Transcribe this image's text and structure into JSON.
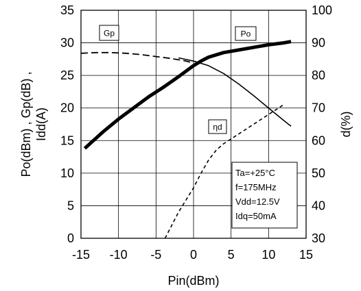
{
  "chart_data": {
    "type": "line",
    "title": "",
    "xlabel": "Pin(dBm)",
    "ylabel_left": "Po(dBm) , Gp(dB) , Idd(A)",
    "ylabel_left_lines": [
      "Po(dBm) , Gp(dB) ,",
      "Idd(A)"
    ],
    "ylabel_right": "d(%)",
    "xlim": [
      -15,
      15
    ],
    "ylim_left": [
      0,
      35
    ],
    "ylim_right": [
      30,
      100
    ],
    "x_ticks": [
      -15,
      -10,
      -5,
      0,
      5,
      10,
      15
    ],
    "x_tick_labels": [
      "-15",
      "-10",
      "-5",
      "0",
      "5",
      "10",
      "15"
    ],
    "y_left_ticks": [
      0,
      5,
      10,
      15,
      20,
      25,
      30,
      35
    ],
    "y_left_tick_labels": [
      "0",
      "5",
      "10",
      "15",
      "20",
      "25",
      "30",
      "35"
    ],
    "y_right_ticks": [
      30,
      40,
      50,
      60,
      70,
      80,
      90,
      100
    ],
    "y_right_tick_labels": [
      "30",
      "40",
      "50",
      "60",
      "70",
      "80",
      "90",
      "100"
    ],
    "grid": true,
    "series": [
      {
        "name": "Po",
        "axis": "left",
        "style": "solid-thick",
        "x": [
          -14.5,
          -12,
          -10,
          -8,
          -6,
          -4,
          -2,
          0,
          1,
          2,
          4,
          6,
          8,
          10,
          12,
          13
        ],
        "y": [
          13.8,
          16.4,
          18.3,
          20.0,
          21.7,
          23.2,
          24.8,
          26.5,
          27.2,
          27.8,
          28.5,
          28.9,
          29.3,
          29.7,
          30.0,
          30.2
        ]
      },
      {
        "name": "Gp",
        "axis": "left",
        "style": "dashed-long",
        "x": [
          -15,
          -13,
          -11,
          -9,
          -7,
          -5,
          -3,
          -1,
          0
        ],
        "y": [
          28.4,
          28.5,
          28.5,
          28.4,
          28.2,
          27.9,
          27.6,
          27.2,
          26.9
        ]
      },
      {
        "name": "Idd",
        "axis": "left",
        "style": "solid-thin",
        "x": [
          -2,
          0,
          2,
          4,
          6,
          8,
          10,
          12,
          13
        ],
        "y": [
          27.7,
          27.2,
          26.5,
          25.3,
          23.7,
          21.9,
          20.0,
          18.1,
          17.2
        ]
      },
      {
        "name": "ηd",
        "axis": "right",
        "style": "dotted",
        "x": [
          -3.8,
          -2,
          0,
          1,
          2,
          3,
          4,
          6,
          8,
          10,
          12
        ],
        "y": [
          30,
          38,
          45.5,
          50,
          54,
          57,
          59,
          62,
          65,
          68,
          71
        ]
      }
    ],
    "labels": [
      {
        "text": "Gp",
        "series": "Gp"
      },
      {
        "text": "Po",
        "series": "Po"
      },
      {
        "text": "ηd",
        "series": "ηd"
      }
    ],
    "conditions": [
      "Ta=+25°C",
      "f=175MHz",
      "Vdd=12.5V",
      "Idq=50mA"
    ]
  }
}
